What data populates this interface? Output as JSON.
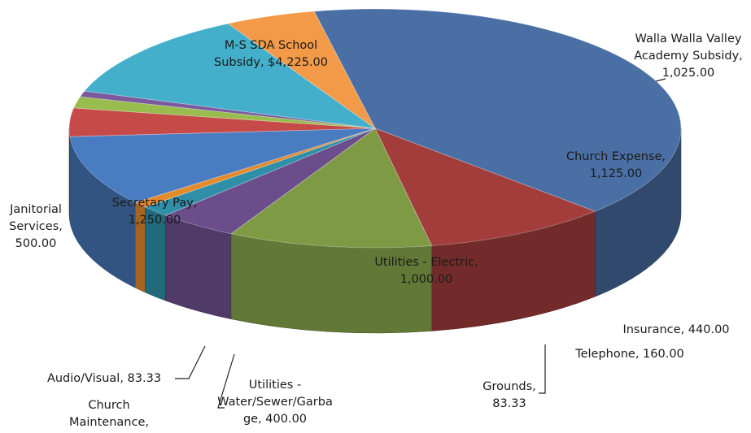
{
  "chart_data": {
    "type": "pie",
    "style": "3d-exploded-perspective",
    "title": "",
    "series": [
      {
        "slices": [
          {
            "name": "M-S SDA School Subsidy",
            "value": 4225.0,
            "label_lines": [
              "M-S SDA School",
              "Subsidy,  $4,225.00"
            ],
            "color": "#4A6FA5"
          },
          {
            "name": "Walla Walla Valley Academy Subsidy",
            "value": 1025.0,
            "label_lines": [
              "Walla Walla Valley",
              "Academy Subsidy,",
              "1,025.00"
            ],
            "color": "#A23D3B"
          },
          {
            "name": "Church Expense",
            "value": 1125.0,
            "label_lines": [
              "Church Expense,",
              "1,125.00"
            ],
            "color": "#7E9A45"
          },
          {
            "name": "Insurance",
            "value": 440.0,
            "label_lines": [
              "Insurance,  440.00"
            ],
            "color": "#6B4D8B"
          },
          {
            "name": "Telephone",
            "value": 160.0,
            "label_lines": [
              "Telephone,  160.00"
            ],
            "color": "#2F8FA8"
          },
          {
            "name": "Grounds",
            "value": 83.33,
            "label_lines": [
              "Grounds,",
              "83.33"
            ],
            "color": "#E58A2B"
          },
          {
            "name": "Utilities - Electric",
            "value": 1000.0,
            "label_lines": [
              "Utilities - Electric,",
              "1,000.00"
            ],
            "color": "#4A7CC1"
          },
          {
            "name": "Utilities - Water/Sewer/Garbage",
            "value": 400.0,
            "label_lines": [
              "Utilities -",
              "Water/Sewer/Garba",
              "ge,  400.00"
            ],
            "color": "#C54A48"
          },
          {
            "name": "Church Maintenance",
            "value": 160.0,
            "label_lines": [
              "Church",
              "Maintenance,"
            ],
            "color": "#99BC4E"
          },
          {
            "name": "Audio/Visual",
            "value": 83.33,
            "label_lines": [
              "Audio/Visual,  83.33"
            ],
            "color": "#7A5A9D"
          },
          {
            "name": "Secretary Pay",
            "value": 1250.0,
            "label_lines": [
              "Secretary Pay,",
              "1,250.00"
            ],
            "color": "#44AFCB"
          },
          {
            "name": "Janitorial Services",
            "value": 500.0,
            "label_lines": [
              "Janitorial",
              "Services,",
              "500.00"
            ],
            "color": "#F29A47"
          }
        ]
      }
    ],
    "legend": "none",
    "label_color": "#1a1a1a"
  }
}
